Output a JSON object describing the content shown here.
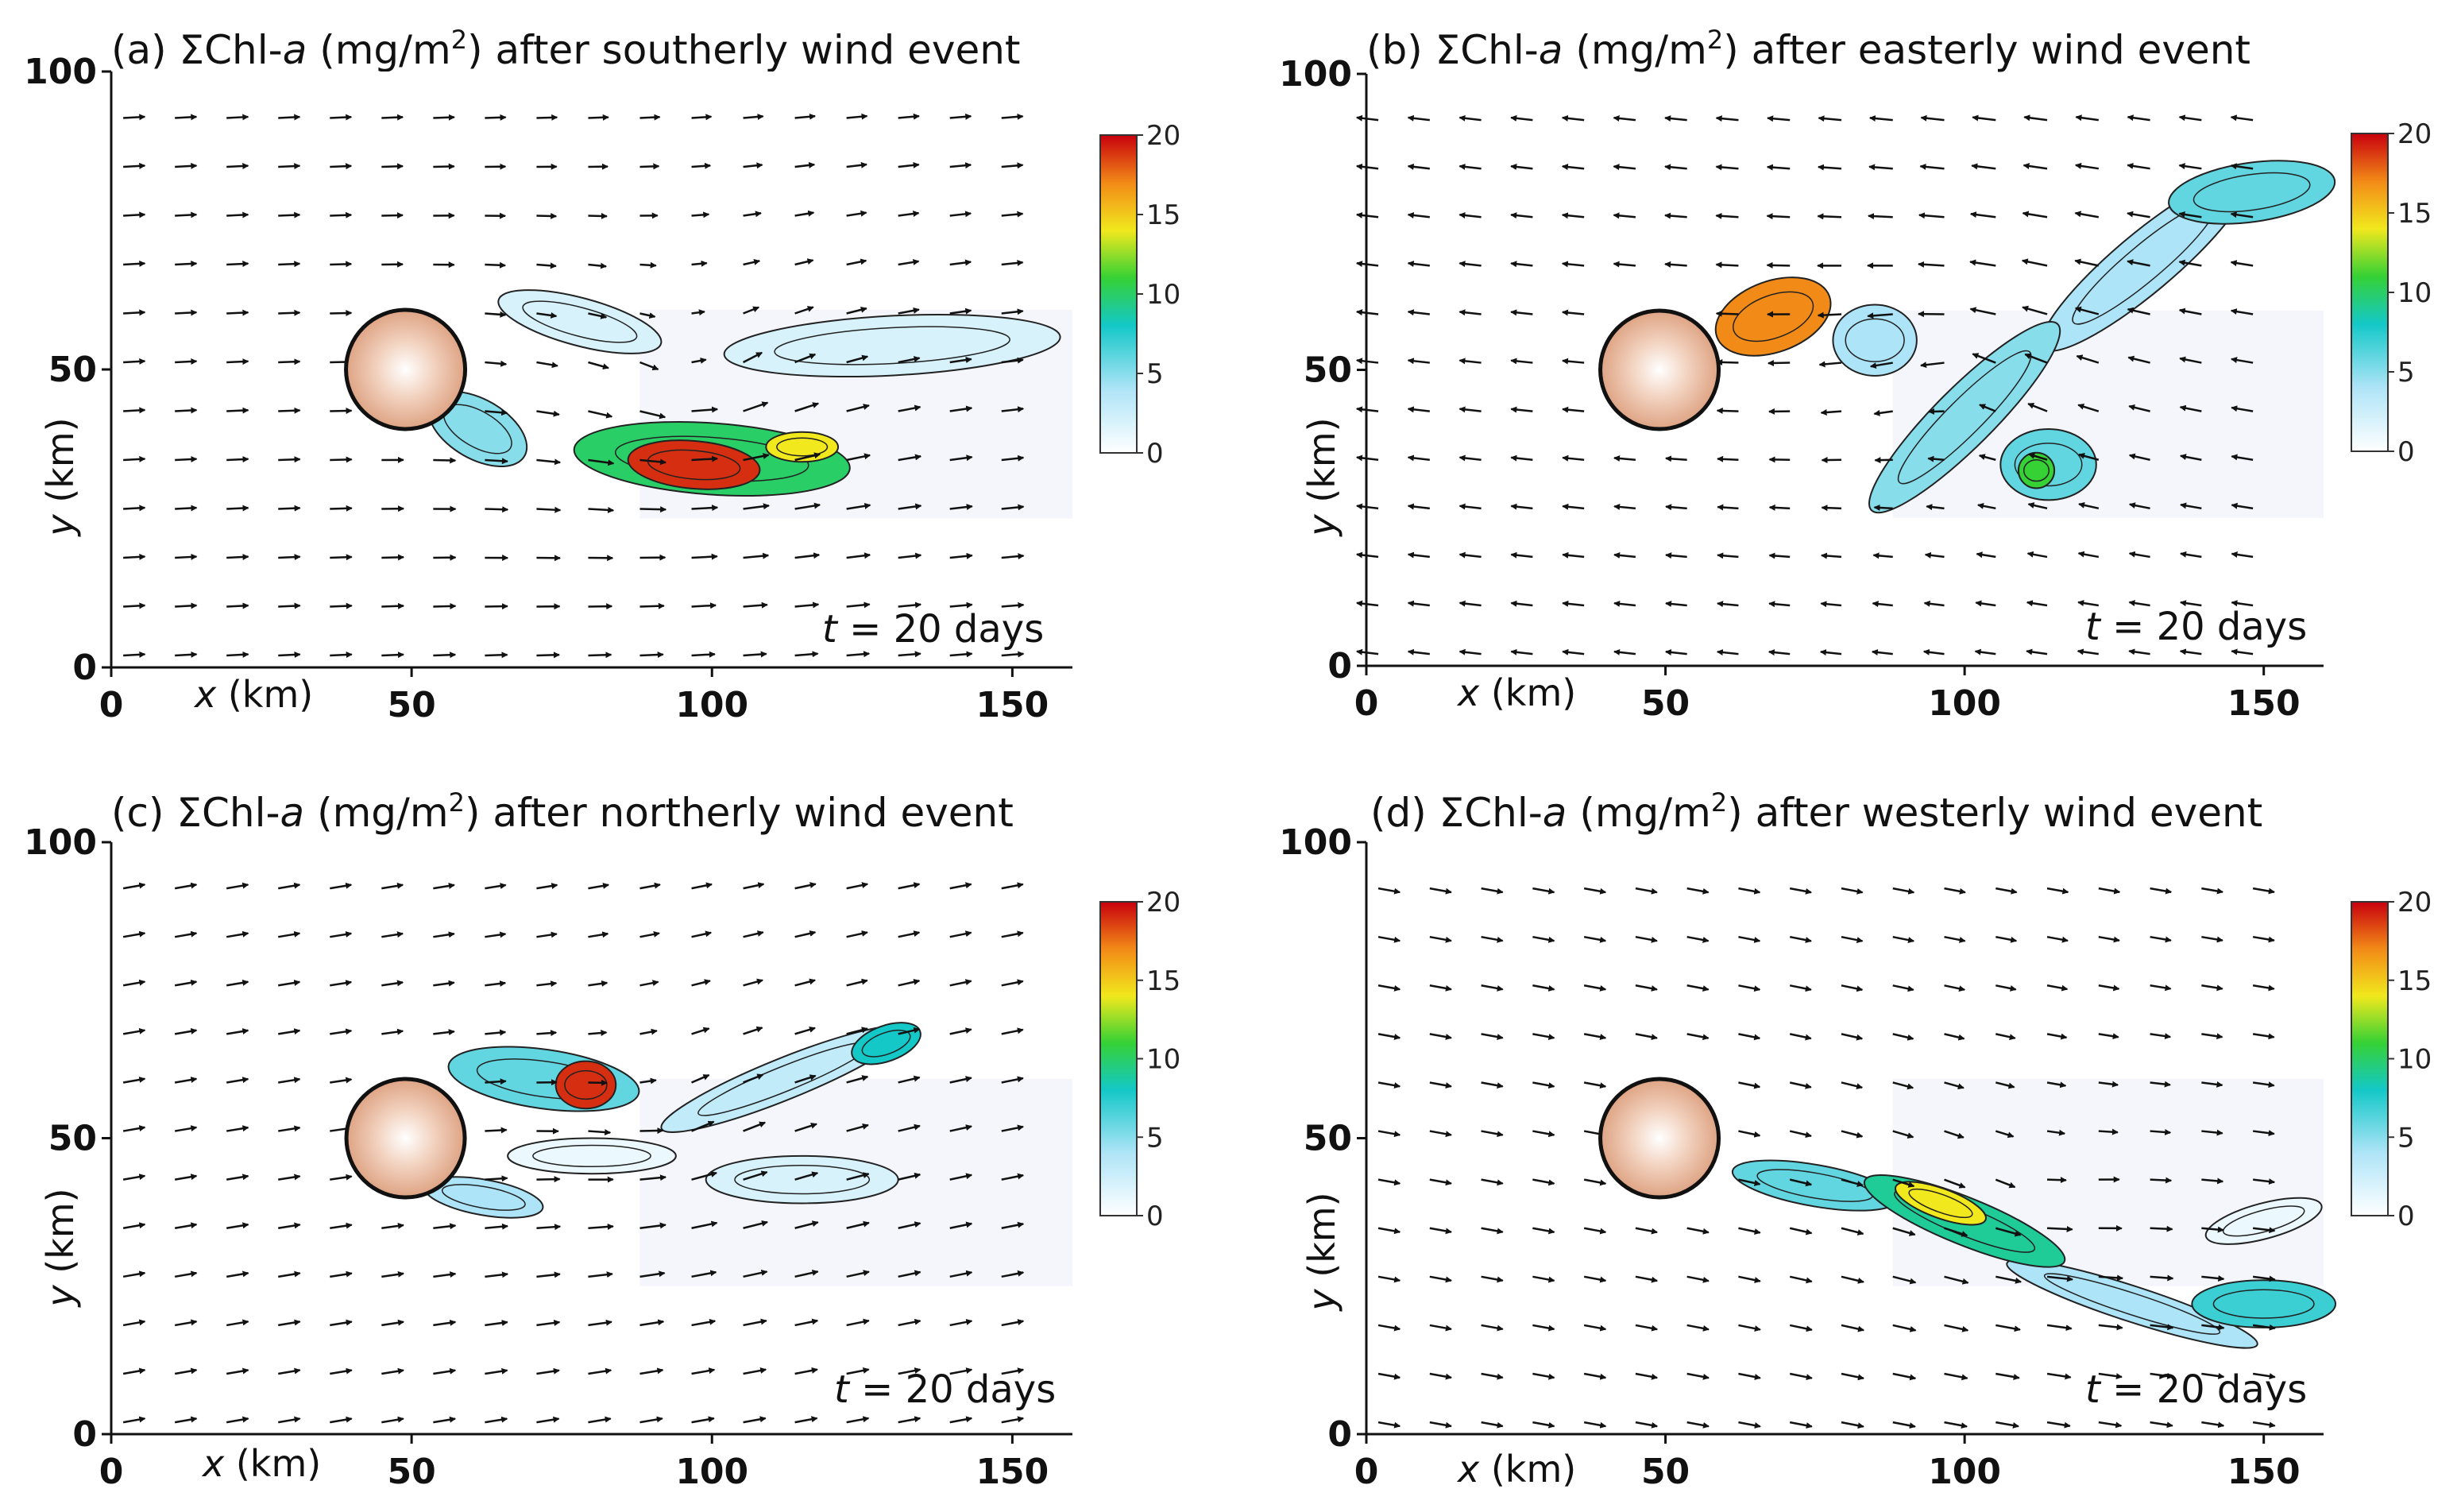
{
  "chart_data": [
    {
      "type": "heatmap",
      "panel": "(a)",
      "title_prefix": "(a) ΣChl-",
      "title_var": "a",
      "title_unit": " (mg/m",
      "title_sup": "2",
      "title_rest": ") after southerly wind event",
      "xlabel_var": "x",
      "xlabel_unit": " (km)",
      "ylabel_var": "y",
      "ylabel_unit": " (km)",
      "xlim": [
        0,
        160
      ],
      "ylim": [
        0,
        100
      ],
      "xticks": [
        "0",
        "50",
        "100",
        "150"
      ],
      "yticks": [
        "0",
        "50",
        "100"
      ],
      "colorbar": {
        "min": 0,
        "max": 20,
        "ticks": [
          "0",
          "5",
          "10",
          "15",
          "20"
        ]
      },
      "time_var": "t",
      "time_text": " = 20 days",
      "island": {
        "x": 49,
        "y": 50,
        "r": 10
      },
      "blobs": [
        {
          "x": 130,
          "y": 54,
          "rx": 28,
          "ry": 5,
          "rot": 3,
          "v": 2
        },
        {
          "x": 78,
          "y": 58,
          "rx": 14,
          "ry": 4,
          "rot": -15,
          "v": 2
        },
        {
          "x": 100,
          "y": 35,
          "rx": 23,
          "ry": 6,
          "rot": -4,
          "v": 10
        },
        {
          "x": 97,
          "y": 34,
          "rx": 11,
          "ry": 4,
          "rot": -5,
          "v": 19
        },
        {
          "x": 115,
          "y": 37,
          "rx": 6,
          "ry": 2.5,
          "rot": 0,
          "v": 14
        },
        {
          "x": 61,
          "y": 40,
          "rx": 9,
          "ry": 5,
          "rot": -30,
          "v": 5
        }
      ],
      "flow": {
        "type": "uniform",
        "u": 1,
        "v": 0.06,
        "vortex": {
          "x": 96,
          "y": 48,
          "strength": 0.8
        }
      }
    },
    {
      "type": "heatmap",
      "panel": "(b)",
      "title_prefix": "(b) ΣChl-",
      "title_var": "a",
      "title_unit": " (mg/m",
      "title_sup": "2",
      "title_rest": ") after easterly wind event",
      "xlabel_var": "x",
      "xlabel_unit": " (km)",
      "ylabel_var": "y",
      "ylabel_unit": " (km)",
      "xlim": [
        0,
        160
      ],
      "ylim": [
        0,
        100
      ],
      "xticks": [
        "0",
        "50",
        "100",
        "150"
      ],
      "yticks": [
        "0",
        "50",
        "100"
      ],
      "colorbar": {
        "min": 0,
        "max": 20,
        "ticks": [
          "0",
          "5",
          "10",
          "15",
          "20"
        ]
      },
      "time_var": "t",
      "time_text": " = 20 days",
      "island": {
        "x": 49,
        "y": 50,
        "r": 10
      },
      "blobs": [
        {
          "x": 68,
          "y": 59,
          "rx": 10,
          "ry": 6,
          "rot": 20,
          "v": 17
        },
        {
          "x": 85,
          "y": 55,
          "rx": 7,
          "ry": 6,
          "rot": 0,
          "v": 4
        },
        {
          "x": 100,
          "y": 42,
          "rx": 22,
          "ry": 5,
          "rot": 45,
          "v": 5
        },
        {
          "x": 114,
          "y": 34,
          "rx": 8,
          "ry": 6,
          "rot": 0,
          "v": 6
        },
        {
          "x": 130,
          "y": 68,
          "rx": 22,
          "ry": 5,
          "rot": 40,
          "v": 4
        },
        {
          "x": 148,
          "y": 80,
          "rx": 14,
          "ry": 5,
          "rot": 8,
          "v": 6
        },
        {
          "x": 112,
          "y": 33,
          "rx": 3,
          "ry": 3,
          "rot": 0,
          "v": 11
        }
      ],
      "flow": {
        "type": "uniform",
        "u": -1,
        "v": 0.12,
        "vortex": {
          "x": 100,
          "y": 50,
          "strength": 0.6
        }
      }
    },
    {
      "type": "heatmap",
      "panel": "(c)",
      "title_prefix": "(c) ΣChl-",
      "title_var": "a",
      "title_unit": " (mg/m",
      "title_sup": "2",
      "title_rest": ") after northerly wind event",
      "xlabel_var": "x",
      "xlabel_unit": " (km)",
      "ylabel_var": "y",
      "ylabel_unit": " (km)",
      "xlim": [
        0,
        160
      ],
      "ylim": [
        0,
        100
      ],
      "xticks": [
        "0",
        "50",
        "100",
        "150"
      ],
      "yticks": [
        "0",
        "50",
        "100"
      ],
      "colorbar": {
        "min": 0,
        "max": 20,
        "ticks": [
          "0",
          "5",
          "10",
          "15",
          "20"
        ]
      },
      "time_var": "t",
      "time_text": " = 20 days",
      "island": {
        "x": 49,
        "y": 50,
        "r": 10
      },
      "blobs": [
        {
          "x": 72,
          "y": 60,
          "rx": 16,
          "ry": 5,
          "rot": -8,
          "v": 6
        },
        {
          "x": 79,
          "y": 59,
          "rx": 5,
          "ry": 4,
          "rot": 0,
          "v": 19
        },
        {
          "x": 112,
          "y": 60,
          "rx": 22,
          "ry": 3.5,
          "rot": 22,
          "v": 3
        },
        {
          "x": 129,
          "y": 66,
          "rx": 6,
          "ry": 3,
          "rot": 20,
          "v": 8
        },
        {
          "x": 115,
          "y": 43,
          "rx": 16,
          "ry": 4,
          "rot": 0,
          "v": 2
        },
        {
          "x": 80,
          "y": 47,
          "rx": 14,
          "ry": 3,
          "rot": 0,
          "v": 1
        },
        {
          "x": 62,
          "y": 40,
          "rx": 10,
          "ry": 3,
          "rot": -10,
          "v": 4
        }
      ],
      "flow": {
        "type": "uniform",
        "u": 1,
        "v": 0.18,
        "vortex": {
          "x": 90,
          "y": 52,
          "strength": 0.5
        }
      }
    },
    {
      "type": "heatmap",
      "panel": "(d)",
      "title_prefix": "(d) ΣChl-",
      "title_var": "a",
      "title_unit": " (mg/m",
      "title_sup": "2",
      "title_rest": ") after westerly wind event",
      "xlabel_var": "x",
      "xlabel_unit": " (km)",
      "ylabel_var": "y",
      "ylabel_unit": " (km)",
      "xlim": [
        0,
        160
      ],
      "ylim": [
        0,
        100
      ],
      "xticks": [
        "0",
        "50",
        "100",
        "150"
      ],
      "yticks": [
        "0",
        "50",
        "100"
      ],
      "colorbar": {
        "min": 0,
        "max": 20,
        "ticks": [
          "0",
          "5",
          "10",
          "15",
          "20"
        ]
      },
      "time_var": "t",
      "time_text": " = 20 days",
      "island": {
        "x": 49,
        "y": 50,
        "r": 10
      },
      "blobs": [
        {
          "x": 75,
          "y": 42,
          "rx": 14,
          "ry": 3.5,
          "rot": -10,
          "v": 6
        },
        {
          "x": 100,
          "y": 36,
          "rx": 18,
          "ry": 4,
          "rot": -22,
          "v": 9
        },
        {
          "x": 96,
          "y": 39,
          "rx": 8,
          "ry": 2.5,
          "rot": -20,
          "v": 14
        },
        {
          "x": 128,
          "y": 22,
          "rx": 22,
          "ry": 3,
          "rot": -18,
          "v": 4
        },
        {
          "x": 150,
          "y": 22,
          "rx": 12,
          "ry": 4,
          "rot": 0,
          "v": 7
        },
        {
          "x": 150,
          "y": 36,
          "rx": 10,
          "ry": 3,
          "rot": 15,
          "v": 1
        }
      ],
      "flow": {
        "type": "uniform",
        "u": 1,
        "v": -0.18,
        "vortex": {
          "x": 110,
          "y": 40,
          "strength": 0.4
        }
      }
    }
  ]
}
